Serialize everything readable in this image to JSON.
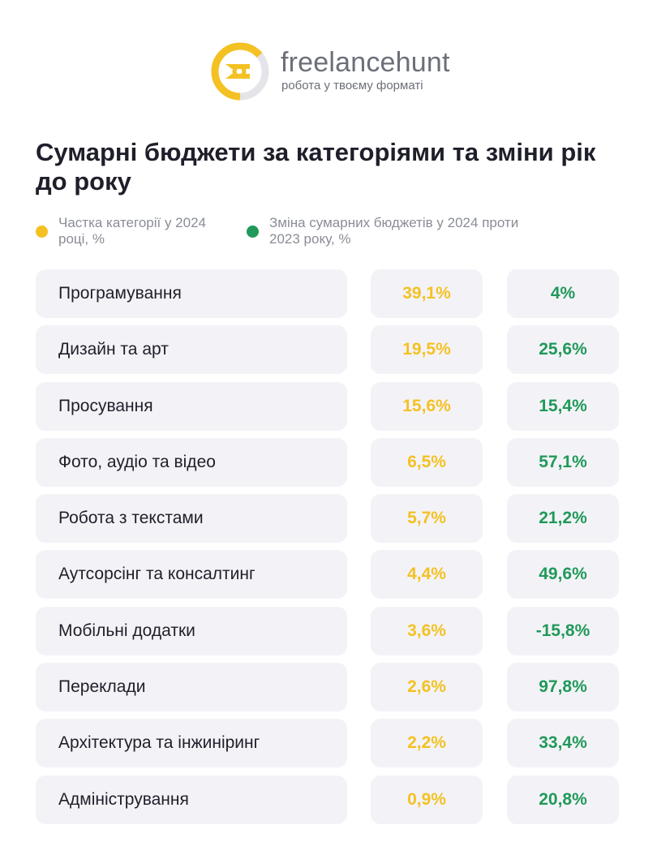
{
  "brand": {
    "name": "freelancehunt",
    "tagline": "робота у твоєму форматі",
    "accent_color": "#f4c123",
    "logo_icon": "freelancehunt-logo-icon"
  },
  "title": "Сумарні бюджети за категоріями та зміни рік до року",
  "legend": {
    "share": {
      "label": "Частка категорії у 2024 році, %",
      "color": "#f4c123"
    },
    "change": {
      "label": "Зміна сумарних бюджетів у 2024 проти 2023 року, %",
      "color": "#20995a"
    }
  },
  "rows": [
    {
      "category": "Програмування",
      "share": "39,1%",
      "change": "4%"
    },
    {
      "category": "Дизайн та арт",
      "share": "19,5%",
      "change": "25,6%"
    },
    {
      "category": "Просування",
      "share": "15,6%",
      "change": "15,4%"
    },
    {
      "category": "Фото, аудіо та відео",
      "share": "6,5%",
      "change": "57,1%"
    },
    {
      "category": "Робота з текстами",
      "share": "5,7%",
      "change": "21,2%"
    },
    {
      "category": "Аутсорсінг та консалтинг",
      "share": "4,4%",
      "change": "49,6%"
    },
    {
      "category": "Мобільні додатки",
      "share": "3,6%",
      "change": "-15,8%"
    },
    {
      "category": "Переклади",
      "share": "2,6%",
      "change": "97,8%"
    },
    {
      "category": "Архітектура та інжиніринг",
      "share": "2,2%",
      "change": "33,4%"
    },
    {
      "category": "Адміністрування",
      "share": "0,9%",
      "change": "20,8%"
    }
  ],
  "chart_data": {
    "type": "table",
    "title": "Сумарні бюджети за категоріями та зміни рік до року",
    "columns": [
      "",
      "Частка категорії у 2024 році, %",
      "Зміна сумарних бюджетів у 2024 проти 2023 року, %"
    ],
    "categories": [
      "Програмування",
      "Дизайн та арт",
      "Просування",
      "Фото, аудіо та відео",
      "Робота з текстами",
      "Аутсорсінг та консалтинг",
      "Мобільні додатки",
      "Переклади",
      "Архітектура та інжиніринг",
      "Адміністрування"
    ],
    "series": [
      {
        "name": "Частка категорії у 2024 році, %",
        "values": [
          39.1,
          19.5,
          15.6,
          6.5,
          5.7,
          4.4,
          3.6,
          2.6,
          2.2,
          0.9
        ]
      },
      {
        "name": "Зміна сумарних бюджетів у 2024 проти 2023 року, %",
        "values": [
          4,
          25.6,
          15.4,
          57.1,
          21.2,
          49.6,
          -15.8,
          97.8,
          33.4,
          20.8
        ]
      }
    ]
  }
}
